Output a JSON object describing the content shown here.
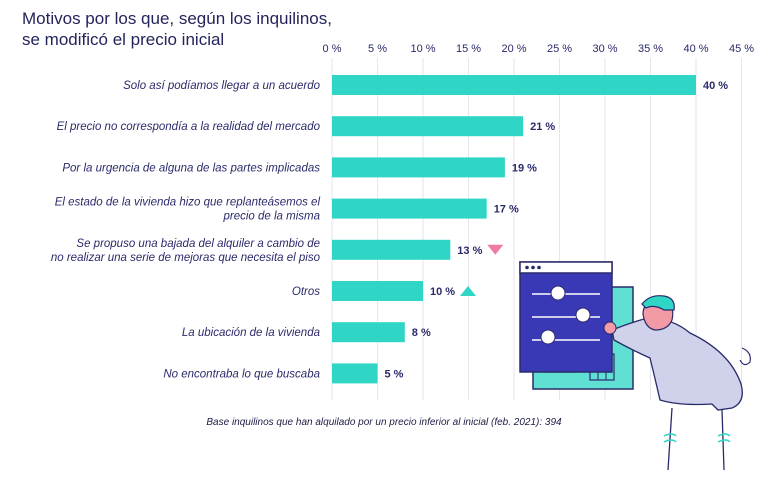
{
  "title": {
    "line1": "Motivos por los que, según los inquilinos,",
    "line2": "se modificó el precio inicial"
  },
  "footnote": "Base inquilinos que han alquilado por un precio inferior al inicial (feb. 2021): 394",
  "colors": {
    "bar": "#2fd6c5",
    "title": "#24245c",
    "label": "#2a2a6b",
    "grid": "#e6e6ee",
    "down_arrow": "#f07aa0",
    "up_arrow": "#2fd6c5"
  },
  "chart_data": {
    "type": "bar",
    "orientation": "horizontal",
    "xlim": [
      0,
      45
    ],
    "xticks": [
      0,
      5,
      10,
      15,
      20,
      25,
      30,
      35,
      40,
      45
    ],
    "tick_suffix": " %",
    "grid": true,
    "categories": [
      [
        "Solo así podíamos llegar a un acuerdo"
      ],
      [
        "El precio no correspondía a la realidad del mercado"
      ],
      [
        "Por la urgencia de alguna de las partes implicadas"
      ],
      [
        "El estado de la vivienda hizo que replanteásemos el",
        "precio de la misma"
      ],
      [
        "Se propuso una bajada del alquiler a cambio de",
        "no realizar una serie de mejoras que necesita el piso"
      ],
      [
        "Otros"
      ],
      [
        "La ubicación de la vivienda"
      ],
      [
        "No encontraba lo que buscaba"
      ]
    ],
    "values": [
      40,
      21,
      19,
      17,
      13,
      10,
      8,
      5
    ],
    "value_labels": [
      "40 %",
      "21 %",
      "19 %",
      "17 %",
      "13 %",
      "10 %",
      "8 %",
      "5 %"
    ],
    "trend_markers": [
      null,
      null,
      null,
      null,
      "down",
      "up",
      null,
      null
    ]
  }
}
